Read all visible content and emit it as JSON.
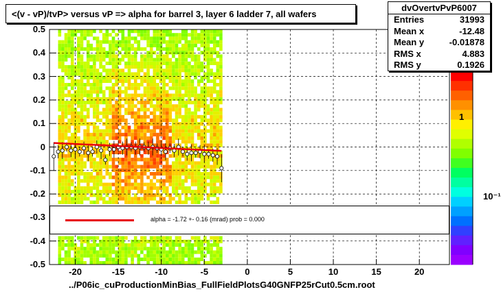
{
  "title": "<(v - vP)/tvP> versus   vP => alpha for barrel 3, layer 6 ladder 7, all wafers",
  "stats": {
    "name": "dvOvertvPvP6007",
    "rows": [
      {
        "label": "Entries",
        "value": "31993"
      },
      {
        "label": "Mean x",
        "value": "-12.48"
      },
      {
        "label": "Mean y",
        "value": "-0.01878"
      },
      {
        "label": "RMS x",
        "value": "4.883"
      },
      {
        "label": "RMS y",
        "value": "0.1926"
      }
    ]
  },
  "fit": {
    "text": "alpha =   -1.72 +-  0.16 (mrad) prob = 0.000",
    "line_color": "#e8000b"
  },
  "bottom_label": "../P06ic_cuProductionMinBias_FullFieldPlotsG40GNFP25rCut0.5cm.root",
  "colors": {
    "fit": "#e8000b",
    "profile": "#000000"
  },
  "chart_data": {
    "type": "heatmap",
    "title": "<(v - vP)/tvP> versus   vP => alpha for barrel 3, layer 6 ladder 7, all wafers",
    "xlim": [
      -23,
      23.5
    ],
    "ylim": [
      -0.5,
      0.5
    ],
    "x_ticks": [
      "-20",
      "-15",
      "-10",
      "-5",
      "0",
      "5",
      "10",
      "15",
      "20"
    ],
    "x_tick_values": [
      -20,
      -15,
      -10,
      -5,
      0,
      5,
      10,
      15,
      20
    ],
    "y_ticks": [
      "-0.5",
      "-0.4",
      "-0.3",
      "-0.2",
      "-0.1",
      "0",
      "0.1",
      "0.2",
      "0.3",
      "0.4",
      "0.5"
    ],
    "y_tick_values": [
      -0.5,
      -0.4,
      -0.3,
      -0.2,
      -0.1,
      0,
      0.1,
      0.2,
      0.3,
      0.4,
      0.5
    ],
    "z_ticks": [
      "1",
      "10⁻¹"
    ],
    "grid": true,
    "data_x_range": [
      -22,
      -3
    ],
    "hot_band_x": [
      -16,
      -9
    ],
    "profile": {
      "x": [
        -22.5,
        -22,
        -21.5,
        -21,
        -20.5,
        -20,
        -19.5,
        -19,
        -18.5,
        -18,
        -17.5,
        -17,
        -16.5,
        -16,
        -15.5,
        -15,
        -14.5,
        -14,
        -13.5,
        -13,
        -12.5,
        -12,
        -11.5,
        -11,
        -10.5,
        -10,
        -9.5,
        -9,
        -8.5,
        -8,
        -7.5,
        -7,
        -6.5,
        -6,
        -5.5,
        -5,
        -4.5,
        -4,
        -3.5,
        -3
      ],
      "y": [
        -0.04,
        -0.02,
        -0.015,
        0.0,
        -0.015,
        -0.01,
        -0.02,
        -0.005,
        -0.025,
        -0.02,
        0.0,
        -0.015,
        -0.055,
        -0.01,
        -0.01,
        0.0,
        -0.005,
        0.0,
        0.0,
        -0.005,
        0.0,
        0.0,
        -0.005,
        0.0,
        -0.005,
        -0.01,
        -0.02,
        -0.005,
        -0.015,
        0.0,
        -0.02,
        -0.03,
        -0.025,
        -0.025,
        -0.02,
        -0.03,
        -0.03,
        -0.035,
        -0.04,
        -0.09
      ]
    },
    "fit_line": {
      "slope": -0.00172,
      "x_range": [
        -22.5,
        -3
      ]
    }
  }
}
